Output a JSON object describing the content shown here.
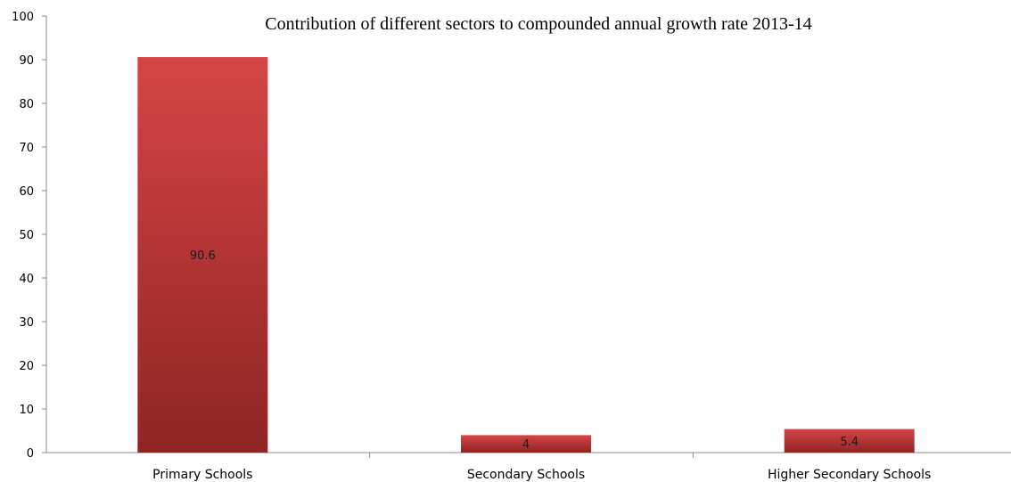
{
  "chart_data": {
    "type": "bar",
    "title": "Contribution of different sectors to compounded annual growth rate 2013-14",
    "xlabel": "",
    "ylabel": "",
    "categories": [
      "Primary Schools",
      "Secondary Schools",
      "Higher Secondary Schools"
    ],
    "values": [
      90.6,
      4,
      5.4
    ],
    "data_labels": [
      "90.6",
      "4",
      "5.4"
    ],
    "y_ticks": [
      0,
      10,
      20,
      30,
      40,
      50,
      60,
      70,
      80,
      90,
      100
    ],
    "ylim": [
      0,
      100
    ],
    "grid": false,
    "legend": "none",
    "colors": {
      "bar_light": "#d64545",
      "bar_dark": "#8f2424",
      "axis": "#888888"
    }
  }
}
